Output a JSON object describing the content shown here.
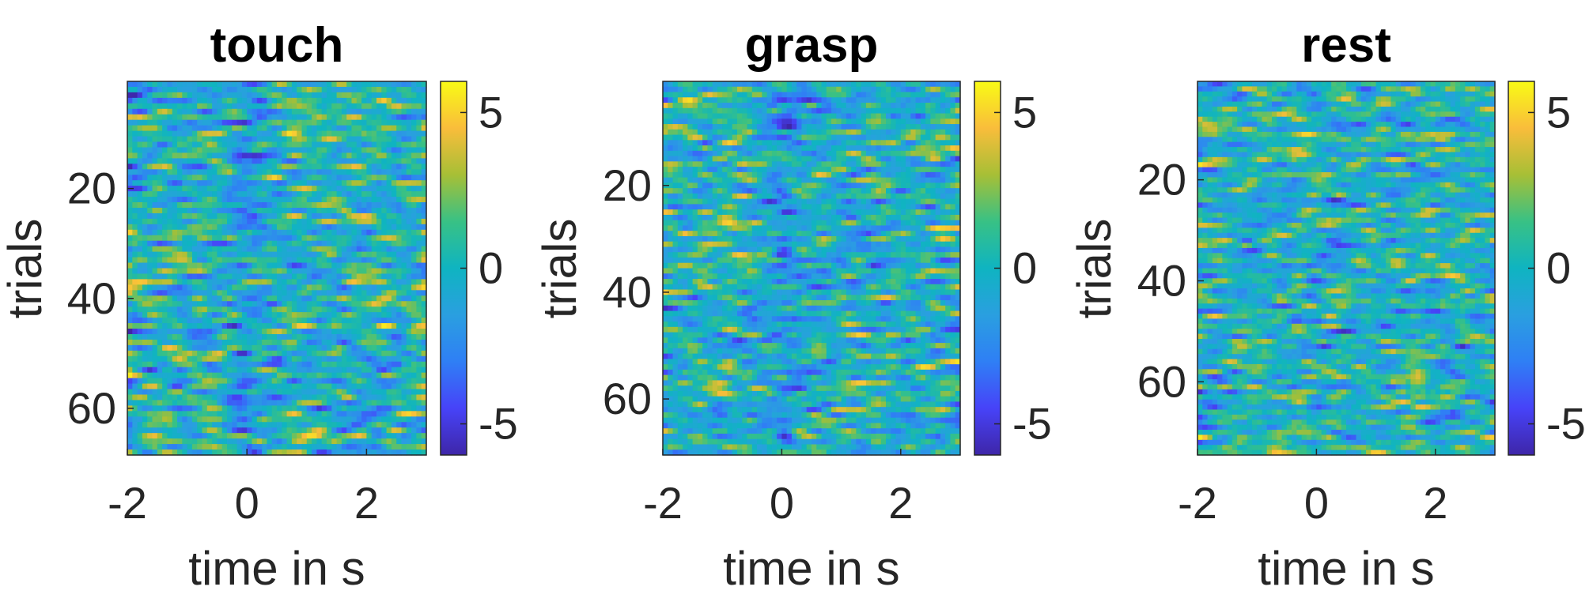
{
  "chart_data": [
    {
      "type": "heatmap",
      "title": "touch",
      "xlabel": "time in s",
      "ylabel": "trials",
      "xlim": [
        -2,
        3
      ],
      "ylim": [
        1,
        68
      ],
      "y_reversed": true,
      "xticks": [
        -2,
        0,
        2
      ],
      "yticks": [
        20,
        40,
        60
      ],
      "clim": [
        -6,
        6
      ],
      "colorbar_ticks": [
        -5,
        0,
        5
      ],
      "colormap": "parula",
      "n_trials": 68,
      "n_time_bins": 60,
      "pattern_seed": 11
    },
    {
      "type": "heatmap",
      "title": "grasp",
      "xlabel": "time in s",
      "ylabel": "trials",
      "xlim": [
        -2,
        3
      ],
      "ylim": [
        1,
        70
      ],
      "y_reversed": true,
      "xticks": [
        -2,
        0,
        2
      ],
      "yticks": [
        20,
        40,
        60
      ],
      "clim": [
        -6,
        6
      ],
      "colorbar_ticks": [
        -5,
        0,
        5
      ],
      "colormap": "parula",
      "n_trials": 70,
      "n_time_bins": 60,
      "pattern_seed": 23
    },
    {
      "type": "heatmap",
      "title": "rest",
      "xlabel": "time in s",
      "ylabel": "trials",
      "xlim": [
        -2,
        3
      ],
      "ylim": [
        1,
        74
      ],
      "y_reversed": true,
      "xticks": [
        -2,
        0,
        2
      ],
      "yticks": [
        20,
        40,
        60
      ],
      "clim": [
        -6,
        6
      ],
      "colorbar_ticks": [
        -5,
        0,
        5
      ],
      "colormap": "parula",
      "n_trials": 74,
      "n_time_bins": 60,
      "pattern_seed": 37
    }
  ]
}
